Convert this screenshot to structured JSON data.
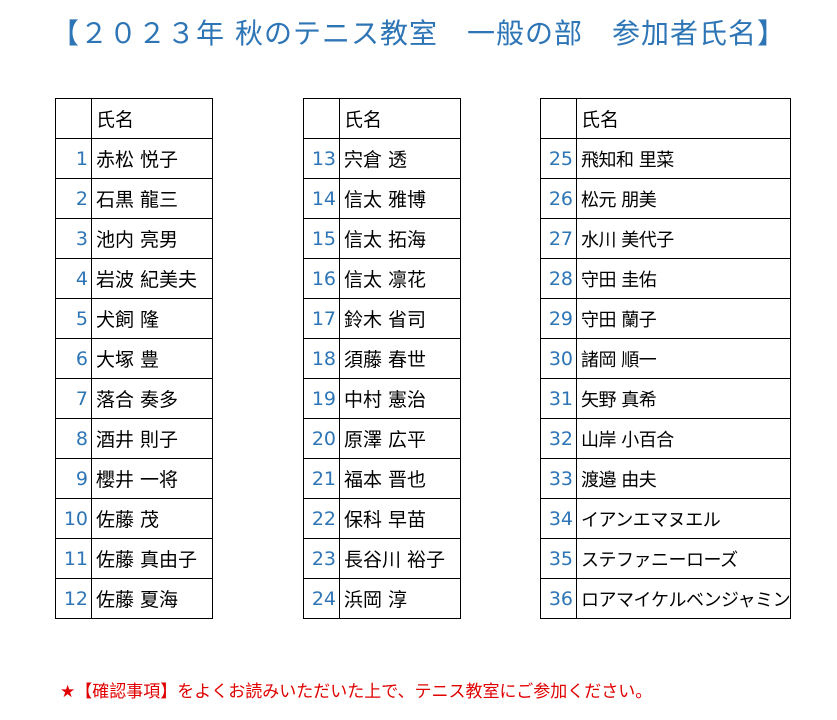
{
  "title": "【２０２３年 秋のテニス教室　一般の部　参加者氏名】",
  "header_label": "氏名",
  "tables": [
    {
      "rows": [
        {
          "no": "1",
          "name": "赤松 悦子"
        },
        {
          "no": "2",
          "name": "石黒 龍三"
        },
        {
          "no": "3",
          "name": "池内 亮男"
        },
        {
          "no": "4",
          "name": "岩波 紀美夫"
        },
        {
          "no": "5",
          "name": "犬飼 隆"
        },
        {
          "no": "6",
          "name": "大塚 豊"
        },
        {
          "no": "7",
          "name": "落合 奏多"
        },
        {
          "no": "8",
          "name": "酒井 則子"
        },
        {
          "no": "9",
          "name": "櫻井 一将"
        },
        {
          "no": "10",
          "name": "佐藤 茂"
        },
        {
          "no": "11",
          "name": "佐藤 真由子"
        },
        {
          "no": "12",
          "name": "佐藤 夏海"
        }
      ]
    },
    {
      "rows": [
        {
          "no": "13",
          "name": "宍倉 透"
        },
        {
          "no": "14",
          "name": "信太 雅博"
        },
        {
          "no": "15",
          "name": "信太 拓海"
        },
        {
          "no": "16",
          "name": "信太 凛花"
        },
        {
          "no": "17",
          "name": "鈴木 省司"
        },
        {
          "no": "18",
          "name": "須藤 春世"
        },
        {
          "no": "19",
          "name": "中村 憲治"
        },
        {
          "no": "20",
          "name": "原澤 広平"
        },
        {
          "no": "21",
          "name": "福本 晋也"
        },
        {
          "no": "22",
          "name": "保科 早苗"
        },
        {
          "no": "23",
          "name": "長谷川 裕子"
        },
        {
          "no": "24",
          "name": "浜岡 淳"
        }
      ]
    },
    {
      "rows": [
        {
          "no": "25",
          "name": "飛知和 里菜"
        },
        {
          "no": "26",
          "name": "松元 朋美"
        },
        {
          "no": "27",
          "name": "水川 美代子"
        },
        {
          "no": "28",
          "name": "守田 圭佑"
        },
        {
          "no": "29",
          "name": "守田 蘭子"
        },
        {
          "no": "30",
          "name": "諸岡 順一"
        },
        {
          "no": "31",
          "name": "矢野 真希"
        },
        {
          "no": "32",
          "name": "山岸 小百合"
        },
        {
          "no": "33",
          "name": "渡邉 由夫"
        },
        {
          "no": "34",
          "name": "イアンエマヌエル"
        },
        {
          "no": "35",
          "name": "ステファニーローズ"
        },
        {
          "no": "36",
          "name": "ロアマイケルベンジャミン"
        }
      ]
    }
  ],
  "note": "★【確認事項】をよくお読みいただいた上で、テニス教室にご参加ください。",
  "colors": {
    "title": "#2e75b6",
    "number": "#2e75b6",
    "note": "#e00000",
    "border": "#000000"
  }
}
